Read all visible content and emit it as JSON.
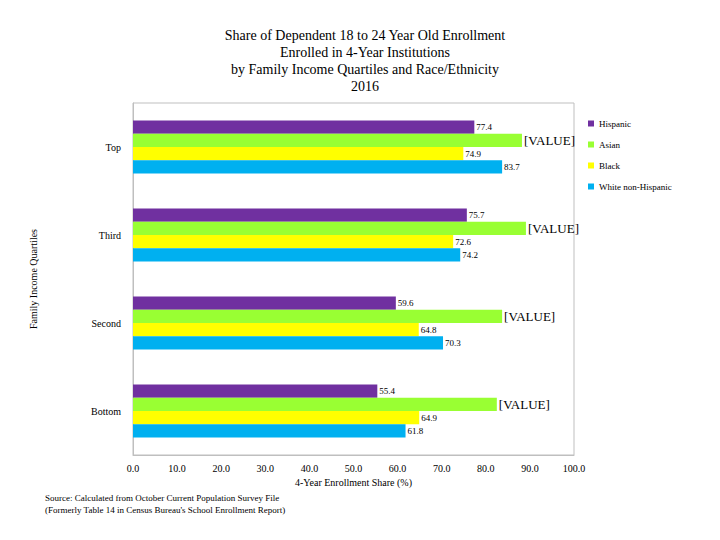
{
  "chart_data": {
    "type": "bar",
    "orientation": "horizontal",
    "title": "Share of Dependent 18 to 24 Year Old Enrollment\nEnrolled in 4-Year Institutions\nby Family Income Quartiles and Race/Ethnicity\n2016",
    "x_label": "4-Year Enrollment Share (%)",
    "y_label": "Family Income Quartiles",
    "annotations": [
      "Source: Calculated from October Current Population Survey File",
      "(Formerly Table 14 in Census Bureau's School Enrollment Report)"
    ],
    "categories": [
      "Top",
      "Third",
      "Second",
      "Bottom"
    ],
    "series": [
      {
        "name": "Hispanic",
        "color": "#7030a0",
        "values": [
          77.4,
          75.7,
          59.6,
          55.4
        ]
      },
      {
        "name": "Asian",
        "color": "#99ff33",
        "values": [
          88.2,
          89.1,
          83.7,
          82.5
        ],
        "value_labels": [
          "[VALUE]",
          "[VALUE]",
          "[VALUE]",
          "[VALUE]"
        ]
      },
      {
        "name": "Black",
        "color": "#ffff00",
        "values": [
          74.9,
          72.6,
          64.8,
          64.9
        ]
      },
      {
        "name": "White non-Hispanic",
        "color": "#00b0f0",
        "values": [
          83.7,
          74.2,
          70.3,
          61.8
        ]
      }
    ],
    "xlim": [
      0,
      100
    ],
    "xticks": [
      {
        "value": 0,
        "label": "0.0"
      },
      {
        "value": 10,
        "label": "10.0"
      },
      {
        "value": 20,
        "label": "20.0"
      },
      {
        "value": 30,
        "label": "30.0"
      },
      {
        "value": 40,
        "label": "40.0"
      },
      {
        "value": 50,
        "label": "50.0"
      },
      {
        "value": 60,
        "label": "60.0"
      },
      {
        "value": 70,
        "label": "70.0"
      },
      {
        "value": 80,
        "label": "80.0"
      },
      {
        "value": 90,
        "label": "90.0"
      },
      {
        "value": 100,
        "label": "100.0"
      }
    ],
    "grid": false,
    "legend": "right",
    "data_labels": true
  }
}
